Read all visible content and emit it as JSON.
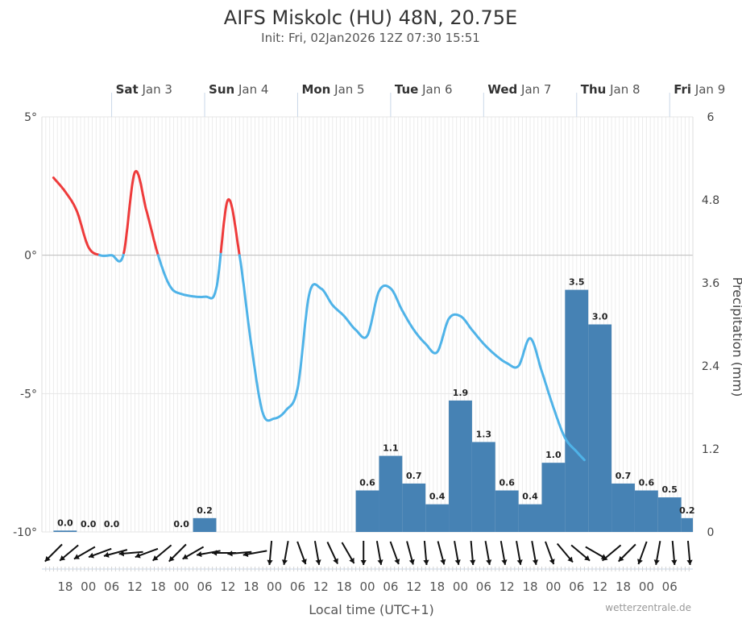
{
  "chart_data": {
    "type": "line+bar",
    "title": "AIFS Miskolc (HU) 48N, 20.75E",
    "subtitle": "Init: Fri, 02Jan2026 12Z 07:30 15:51",
    "xlabel": "Local time (UTC+1)",
    "credit": "wetterzentrale.de",
    "y_left": {
      "ticks": [
        "5°",
        "0°",
        "-5°",
        "-10°"
      ],
      "values": [
        5,
        0,
        -5,
        -10
      ],
      "range": [
        -10,
        5
      ]
    },
    "y_right": {
      "label": "Precipitation (mm)",
      "ticks": [
        "6",
        "4.8",
        "3.6",
        "2.4",
        "1.2",
        "0"
      ],
      "values": [
        6,
        4.8,
        3.6,
        2.4,
        1.2,
        0
      ],
      "range": [
        0,
        6
      ]
    },
    "days": [
      {
        "name": "Sat",
        "date": "Jan 3",
        "hour": 30
      },
      {
        "name": "Sun",
        "date": "Jan 4",
        "hour": 54
      },
      {
        "name": "Mon",
        "date": "Jan 5",
        "hour": 78
      },
      {
        "name": "Tue",
        "date": "Jan 6",
        "hour": 102
      },
      {
        "name": "Wed",
        "date": "Jan 7",
        "hour": 126
      },
      {
        "name": "Thu",
        "date": "Jan 8",
        "hour": 150
      },
      {
        "name": "Fri",
        "date": "Jan 9",
        "hour": 174
      }
    ],
    "hour_ticks": [
      {
        "label": "18",
        "hour": 18
      },
      {
        "label": "00",
        "hour": 24
      },
      {
        "label": "06",
        "hour": 30
      },
      {
        "label": "12",
        "hour": 36
      },
      {
        "label": "18",
        "hour": 42
      },
      {
        "label": "00",
        "hour": 48
      },
      {
        "label": "06",
        "hour": 54
      },
      {
        "label": "12",
        "hour": 60
      },
      {
        "label": "18",
        "hour": 66
      },
      {
        "label": "00",
        "hour": 72
      },
      {
        "label": "06",
        "hour": 78
      },
      {
        "label": "12",
        "hour": 84
      },
      {
        "label": "18",
        "hour": 90
      },
      {
        "label": "00",
        "hour": 96
      },
      {
        "label": "06",
        "hour": 102
      },
      {
        "label": "12",
        "hour": 108
      },
      {
        "label": "18",
        "hour": 114
      },
      {
        "label": "00",
        "hour": 120
      },
      {
        "label": "06",
        "hour": 126
      },
      {
        "label": "12",
        "hour": 132
      },
      {
        "label": "18",
        "hour": 138
      },
      {
        "label": "00",
        "hour": 144
      },
      {
        "label": "06",
        "hour": 150
      },
      {
        "label": "12",
        "hour": 156
      },
      {
        "label": "18",
        "hour": 162
      },
      {
        "label": "00",
        "hour": 168
      },
      {
        "label": "06",
        "hour": 174
      }
    ],
    "temperature": {
      "unit": "°C",
      "positive_color": "#ee3b3b",
      "negative_color": "#4fb3e8",
      "points": [
        [
          15,
          2.8
        ],
        [
          18,
          2.3
        ],
        [
          21,
          1.6
        ],
        [
          24,
          0.3
        ],
        [
          27,
          0
        ],
        [
          30,
          0
        ],
        [
          33,
          0
        ],
        [
          36,
          3.0
        ],
        [
          39,
          1.6
        ],
        [
          42,
          0
        ],
        [
          45,
          -1.1
        ],
        [
          48,
          -1.4
        ],
        [
          54,
          -1.5
        ],
        [
          57,
          -1.2
        ],
        [
          60,
          2.0
        ],
        [
          63,
          0
        ],
        [
          66,
          -3.2
        ],
        [
          69,
          -5.7
        ],
        [
          72,
          -5.9
        ],
        [
          75,
          -5.6
        ],
        [
          78,
          -4.8
        ],
        [
          81,
          -1.4
        ],
        [
          84,
          -1.2
        ],
        [
          87,
          -1.8
        ],
        [
          90,
          -2.2
        ],
        [
          93,
          -2.7
        ],
        [
          96,
          -2.9
        ],
        [
          99,
          -1.3
        ],
        [
          102,
          -1.2
        ],
        [
          105,
          -2.0
        ],
        [
          108,
          -2.7
        ],
        [
          111,
          -3.2
        ],
        [
          114,
          -3.5
        ],
        [
          117,
          -2.3
        ],
        [
          120,
          -2.2
        ],
        [
          123,
          -2.7
        ],
        [
          126,
          -3.2
        ],
        [
          129,
          -3.6
        ],
        [
          132,
          -3.9
        ],
        [
          135,
          -4.0
        ],
        [
          138,
          -3.0
        ],
        [
          141,
          -4.2
        ],
        [
          144,
          -5.5
        ],
        [
          147,
          -6.6
        ],
        [
          150,
          -7.1
        ],
        [
          152,
          -7.4
        ]
      ]
    },
    "precipitation": {
      "unit": "mm",
      "color": "#4682b4",
      "bars": [
        {
          "start": 15,
          "end": 21,
          "value": 0.02,
          "label": "0.0"
        },
        {
          "start": 21,
          "end": 27,
          "value": 0,
          "label": "0.0"
        },
        {
          "start": 27,
          "end": 33,
          "value": 0,
          "label": "0.0"
        },
        {
          "start": 33,
          "end": 39,
          "value": 0,
          "label": ""
        },
        {
          "start": 39,
          "end": 45,
          "value": 0,
          "label": ""
        },
        {
          "start": 45,
          "end": 51,
          "value": 0,
          "label": "0.0"
        },
        {
          "start": 51,
          "end": 57,
          "value": 0.2,
          "label": "0.2"
        },
        {
          "start": 93,
          "end": 99,
          "value": 0.6,
          "label": "0.6"
        },
        {
          "start": 99,
          "end": 105,
          "value": 1.1,
          "label": "1.1"
        },
        {
          "start": 105,
          "end": 111,
          "value": 0.7,
          "label": "0.7"
        },
        {
          "start": 111,
          "end": 117,
          "value": 0.4,
          "label": "0.4"
        },
        {
          "start": 117,
          "end": 123,
          "value": 1.9,
          "label": "1.9"
        },
        {
          "start": 123,
          "end": 129,
          "value": 1.3,
          "label": "1.3"
        },
        {
          "start": 129,
          "end": 135,
          "value": 0.6,
          "label": "0.6"
        },
        {
          "start": 135,
          "end": 141,
          "value": 0.4,
          "label": "0.4"
        },
        {
          "start": 141,
          "end": 147,
          "value": 1.0,
          "label": "1.0"
        },
        {
          "start": 147,
          "end": 153,
          "value": 3.5,
          "label": "3.5"
        },
        {
          "start": 153,
          "end": 159,
          "value": 3.0,
          "label": "3.0"
        },
        {
          "start": 159,
          "end": 165,
          "value": 0.7,
          "label": "0.7"
        },
        {
          "start": 165,
          "end": 171,
          "value": 0.6,
          "label": "0.6"
        },
        {
          "start": 171,
          "end": 177,
          "value": 0.5,
          "label": "0.5"
        },
        {
          "start": 177,
          "end": 183,
          "value": 0.2,
          "label": "0.2"
        }
      ]
    },
    "wind_arrows_deg": [
      225,
      230,
      240,
      250,
      255,
      265,
      250,
      230,
      225,
      240,
      260,
      270,
      265,
      260,
      185,
      190,
      160,
      170,
      155,
      150,
      180,
      170,
      160,
      165,
      175,
      165,
      170,
      175,
      170,
      170,
      170,
      170,
      160,
      140,
      130,
      120,
      230,
      225,
      200,
      190,
      175,
      175
    ],
    "legend": "none",
    "grid": true
  }
}
